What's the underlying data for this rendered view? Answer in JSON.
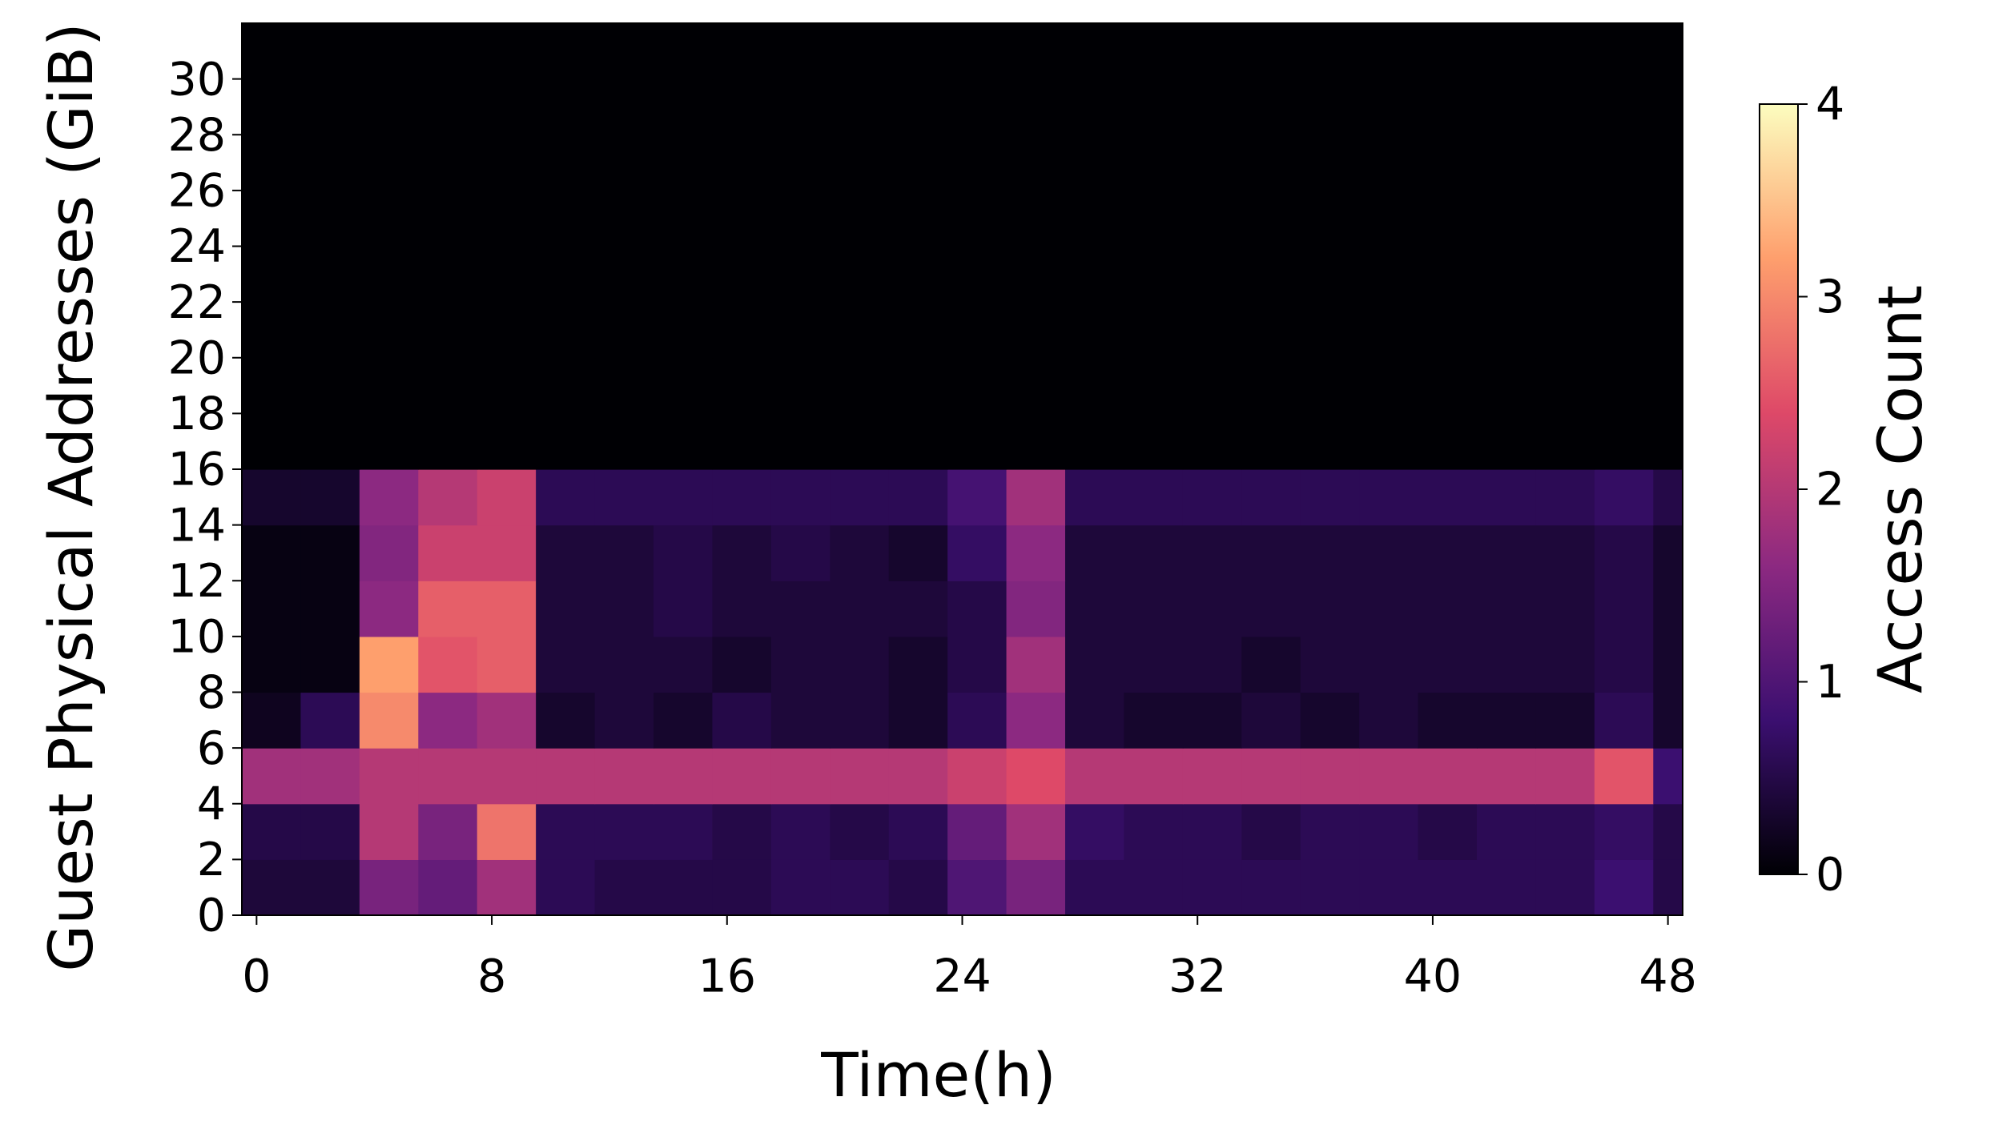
{
  "chart_data": {
    "type": "heatmap",
    "xlabel": "Time(h)",
    "ylabel": "Guest Physical Addresses (GiB)",
    "colorbar_label": "Access Count",
    "xbins": [
      -0.5,
      1.5,
      3.5,
      5.5,
      7.5,
      9.5,
      11.5,
      13.5,
      15.5,
      17.5,
      19.5,
      21.5,
      23.5,
      25.5,
      27.5,
      29.5,
      31.5,
      33.5,
      35.5,
      37.5,
      39.5,
      41.5,
      43.5,
      45.5,
      47.5,
      48.5
    ],
    "ybins": [
      0,
      2,
      4,
      6,
      8,
      10,
      12,
      14,
      16,
      18,
      20,
      22,
      24,
      26,
      28,
      30,
      32
    ],
    "values": [
      [
        0.4,
        0.4,
        1.4,
        1.2,
        1.8,
        0.6,
        0.5,
        0.5,
        0.5,
        0.6,
        0.6,
        0.5,
        1.0,
        1.4,
        0.6,
        0.6,
        0.6,
        0.6,
        0.6,
        0.6,
        0.6,
        0.6,
        0.6,
        0.8,
        0.5
      ],
      [
        0.5,
        0.5,
        2.0,
        1.4,
        2.8,
        0.6,
        0.6,
        0.6,
        0.5,
        0.6,
        0.5,
        0.6,
        1.2,
        1.8,
        0.7,
        0.6,
        0.6,
        0.5,
        0.6,
        0.6,
        0.5,
        0.6,
        0.6,
        0.7,
        0.5
      ],
      [
        1.8,
        1.8,
        2.0,
        2.0,
        2.0,
        2.0,
        2.0,
        2.0,
        2.0,
        2.0,
        2.0,
        2.0,
        2.2,
        2.4,
        2.0,
        2.0,
        2.0,
        2.0,
        2.0,
        2.0,
        2.0,
        2.0,
        2.0,
        2.5,
        0.8
      ],
      [
        0.2,
        0.6,
        3.0,
        1.6,
        1.8,
        0.3,
        0.4,
        0.3,
        0.5,
        0.4,
        0.4,
        0.3,
        0.6,
        1.6,
        0.4,
        0.3,
        0.3,
        0.4,
        0.3,
        0.4,
        0.3,
        0.3,
        0.3,
        0.6,
        0.3
      ],
      [
        0.1,
        0.1,
        3.2,
        2.5,
        2.6,
        0.4,
        0.4,
        0.4,
        0.3,
        0.4,
        0.4,
        0.3,
        0.5,
        1.8,
        0.4,
        0.4,
        0.4,
        0.3,
        0.4,
        0.4,
        0.4,
        0.4,
        0.4,
        0.5,
        0.3
      ],
      [
        0.1,
        0.1,
        1.6,
        2.6,
        2.6,
        0.4,
        0.4,
        0.5,
        0.4,
        0.4,
        0.4,
        0.4,
        0.5,
        1.5,
        0.4,
        0.4,
        0.4,
        0.4,
        0.4,
        0.4,
        0.4,
        0.4,
        0.4,
        0.5,
        0.3
      ],
      [
        0.1,
        0.1,
        1.5,
        2.2,
        2.2,
        0.4,
        0.4,
        0.5,
        0.4,
        0.5,
        0.4,
        0.3,
        0.7,
        1.6,
        0.4,
        0.4,
        0.4,
        0.4,
        0.4,
        0.4,
        0.4,
        0.4,
        0.4,
        0.5,
        0.3
      ],
      [
        0.3,
        0.3,
        1.6,
        2.0,
        2.2,
        0.6,
        0.6,
        0.6,
        0.6,
        0.6,
        0.6,
        0.6,
        0.9,
        1.8,
        0.6,
        0.6,
        0.6,
        0.6,
        0.6,
        0.6,
        0.6,
        0.6,
        0.6,
        0.7,
        0.5
      ],
      [
        0,
        0,
        0,
        0,
        0,
        0,
        0,
        0,
        0,
        0,
        0,
        0,
        0,
        0,
        0,
        0,
        0,
        0,
        0,
        0,
        0,
        0,
        0,
        0,
        0
      ],
      [
        0,
        0,
        0,
        0,
        0,
        0,
        0,
        0,
        0,
        0,
        0,
        0,
        0,
        0,
        0,
        0,
        0,
        0,
        0,
        0,
        0,
        0,
        0,
        0,
        0
      ],
      [
        0,
        0,
        0,
        0,
        0,
        0,
        0,
        0,
        0,
        0,
        0,
        0,
        0,
        0,
        0,
        0,
        0,
        0,
        0,
        0,
        0,
        0,
        0,
        0,
        0
      ],
      [
        0,
        0,
        0,
        0,
        0,
        0,
        0,
        0,
        0,
        0,
        0,
        0,
        0,
        0,
        0,
        0,
        0,
        0,
        0,
        0,
        0,
        0,
        0,
        0,
        0
      ],
      [
        0,
        0,
        0,
        0,
        0,
        0,
        0,
        0,
        0,
        0,
        0,
        0,
        0,
        0,
        0,
        0,
        0,
        0,
        0,
        0,
        0,
        0,
        0,
        0,
        0
      ],
      [
        0,
        0,
        0,
        0,
        0,
        0,
        0,
        0,
        0,
        0,
        0,
        0,
        0,
        0,
        0,
        0,
        0,
        0,
        0,
        0,
        0,
        0,
        0,
        0,
        0
      ],
      [
        0,
        0,
        0,
        0,
        0,
        0,
        0,
        0,
        0,
        0,
        0,
        0,
        0,
        0,
        0,
        0,
        0,
        0,
        0,
        0,
        0,
        0,
        0,
        0,
        0
      ],
      [
        0,
        0,
        0,
        0,
        0,
        0,
        0,
        0,
        0,
        0,
        0,
        0,
        0,
        0,
        0,
        0,
        0,
        0,
        0,
        0,
        0,
        0,
        0,
        0,
        0
      ]
    ],
    "xlim": [
      -0.5,
      48.5
    ],
    "xticks": [
      0,
      8,
      16,
      24,
      32,
      40,
      48
    ],
    "ylim": [
      0,
      32
    ],
    "yticks": [
      0,
      2,
      4,
      6,
      8,
      10,
      12,
      14,
      16,
      18,
      20,
      22,
      24,
      26,
      28,
      30
    ],
    "clim": [
      0,
      4
    ],
    "cticks": [
      0,
      1,
      2,
      3,
      4
    ],
    "colormap": [
      "#000004",
      "#3b0f70",
      "#8c2981",
      "#de4968",
      "#fe9f6d",
      "#fcfdbf"
    ]
  }
}
